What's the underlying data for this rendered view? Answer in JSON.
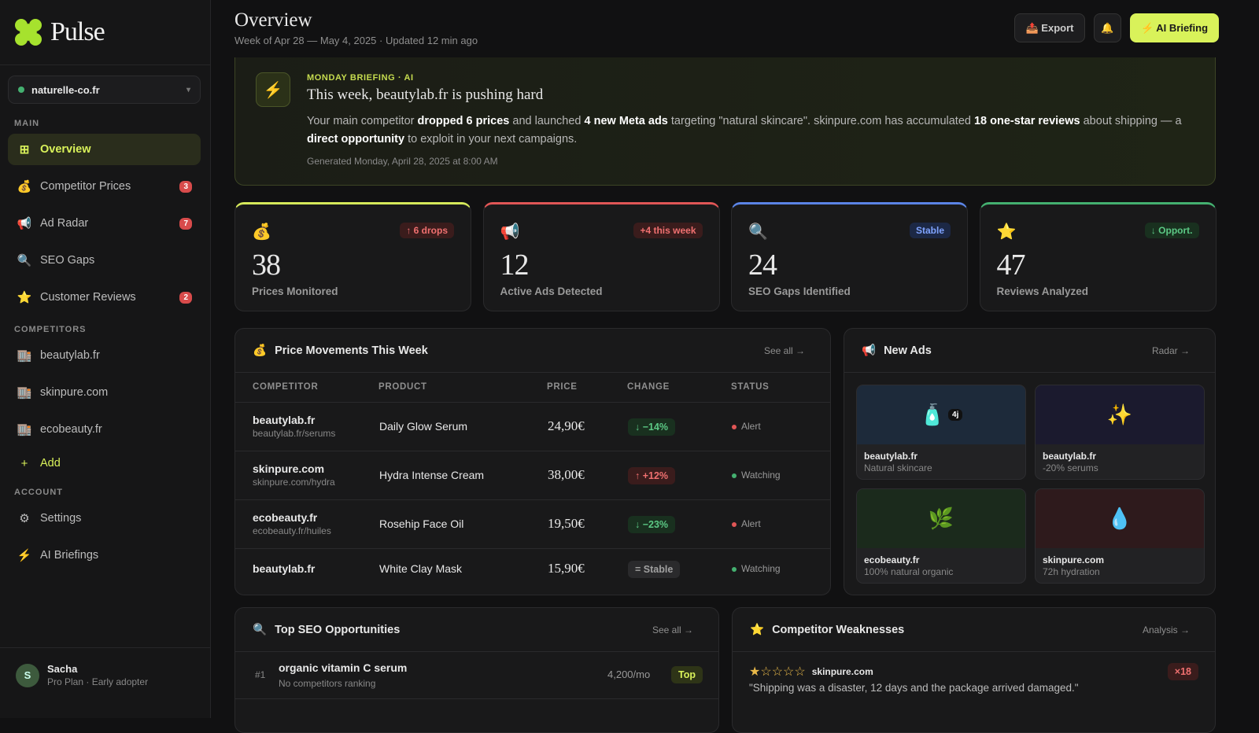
{
  "sidebar": {
    "logo": "Pulse",
    "site": "naturelle-co.fr",
    "sections": [
      {
        "title": "MAIN",
        "items": [
          {
            "icon": "⊞",
            "label": "Overview",
            "active": true
          },
          {
            "icon": "💰",
            "label": "Competitor Prices",
            "badge": 3
          },
          {
            "icon": "📢",
            "label": "Ad Radar",
            "badge": 7
          },
          {
            "icon": "🔍",
            "label": "SEO Gaps"
          },
          {
            "icon": "⭐",
            "label": "Customer Reviews",
            "badge": 2
          }
        ]
      },
      {
        "title": "COMPETITORS",
        "items": [
          {
            "icon": "🏬",
            "label": "beautylab.fr"
          },
          {
            "icon": "🏬",
            "label": "skinpure.com"
          },
          {
            "icon": "🏬",
            "label": "ecobeauty.fr"
          },
          {
            "icon": "+",
            "label": "Add",
            "accent": true
          }
        ]
      },
      {
        "title": "ACCOUNT",
        "items": [
          {
            "icon": "⚙",
            "label": "Settings"
          },
          {
            "icon": "⚡",
            "label": "AI Briefings"
          }
        ]
      }
    ],
    "user": {
      "avatar": "S",
      "name": "Sacha",
      "plan": "Pro Plan · Early adopter"
    }
  },
  "header": {
    "title": "Overview",
    "subtitle": "Week of Apr 28 — May 4, 2025 · Updated 12 min ago",
    "export": "📤 Export",
    "bell": "🔔",
    "briefing": "⚡ AI Briefing"
  },
  "briefing": {
    "icon": "⚡",
    "label": "MONDAY BRIEFING · AI",
    "title": "This week, beautylab.fr is pushing hard",
    "body": [
      {
        "text": "Your main competitor ",
        "bold": false
      },
      {
        "text": "dropped 6 prices",
        "bold": true
      },
      {
        "text": " and launched ",
        "bold": false
      },
      {
        "text": "4 new Meta ads",
        "bold": true
      },
      {
        "text": " targeting \"natural skincare\". skinpure.com has accumulated ",
        "bold": false
      },
      {
        "text": "18 one-star reviews",
        "bold": true
      },
      {
        "text": " about shipping — a ",
        "bold": false
      },
      {
        "text": "direct opportunity",
        "bold": true
      },
      {
        "text": " to exploit in your next campaigns.",
        "bold": false
      }
    ],
    "footer": "Generated Monday, April 28, 2025 at 8:00 AM"
  },
  "stats": [
    {
      "icon": "💰",
      "badge": "↑ 6 drops",
      "tone": "red",
      "color": "#d6e95b",
      "value": 38,
      "label": "Prices Monitored"
    },
    {
      "icon": "📢",
      "badge": "+4 this week",
      "tone": "red",
      "color": "#e05656",
      "value": 12,
      "label": "Active Ads Detected"
    },
    {
      "icon": "🔍",
      "badge": "Stable",
      "tone": "blue",
      "color": "#5b84e6",
      "value": 24,
      "label": "SEO Gaps Identified"
    },
    {
      "icon": "⭐",
      "badge": "↓ Opport.",
      "tone": "green",
      "color": "#44b070",
      "value": 47,
      "label": "Reviews Analyzed"
    }
  ],
  "prices": {
    "icon": "💰",
    "title": "Price Movements This Week",
    "link": "See all →",
    "columns": [
      "COMPETITOR",
      "PRODUCT",
      "PRICE",
      "CHANGE",
      "STATUS"
    ],
    "rows": [
      {
        "competitor": "beautylab.fr",
        "url": "beautylab.fr/serums",
        "product": "Daily Glow Serum",
        "price": "24,90€",
        "change": "↓ −14%",
        "tone": "green",
        "status": "Alert",
        "status_tone": "red"
      },
      {
        "competitor": "skinpure.com",
        "url": "skinpure.com/hydra",
        "product": "Hydra Intense Cream",
        "price": "38,00€",
        "change": "↑ +12%",
        "tone": "red",
        "status": "Watching",
        "status_tone": "green"
      },
      {
        "competitor": "ecobeauty.fr",
        "url": "ecobeauty.fr/huiles",
        "product": "Rosehip Face Oil",
        "price": "19,50€",
        "change": "↓ −23%",
        "tone": "green",
        "status": "Alert",
        "status_tone": "red"
      },
      {
        "competitor": "beautylab.fr",
        "product": "White Clay Mask",
        "price": "15,90€",
        "change": "= Stable",
        "tone": "gray",
        "status": "Watching",
        "status_tone": "green"
      }
    ]
  },
  "ads": {
    "icon": "📢",
    "title": "New Ads",
    "link": "Radar →",
    "items": [
      {
        "emoji": "🧴",
        "tag": "4j",
        "name": "beautylab.fr",
        "desc": "Natural skincare",
        "color": "#1d2a3a"
      },
      {
        "emoji": "✨",
        "name": "beautylab.fr",
        "desc": "-20% serums",
        "color": "#1b1a2e"
      },
      {
        "emoji": "🌿",
        "name": "ecobeauty.fr",
        "desc": "100% natural organic",
        "color": "#1b2a1c"
      },
      {
        "emoji": "💧",
        "name": "skinpure.com",
        "desc": "72h hydration",
        "color": "#2e1a1c"
      }
    ]
  },
  "seo": {
    "icon": "🔍",
    "title": "Top SEO Opportunities",
    "link": "See all →",
    "rows": [
      {
        "rank": "#1",
        "keyword": "organic vitamin C serum",
        "note": "No competitors ranking",
        "volume": "4,200/mo",
        "tag": "Top"
      }
    ]
  },
  "weak": {
    "icon": "⭐",
    "title": "Competitor Weaknesses",
    "link": "Analysis →",
    "items": [
      {
        "stars": "★☆☆☆☆",
        "site": "skinpure.com",
        "count": "×18",
        "quote": "\"Shipping was a disaster, 12 days and the package arrived damaged.\""
      }
    ]
  }
}
